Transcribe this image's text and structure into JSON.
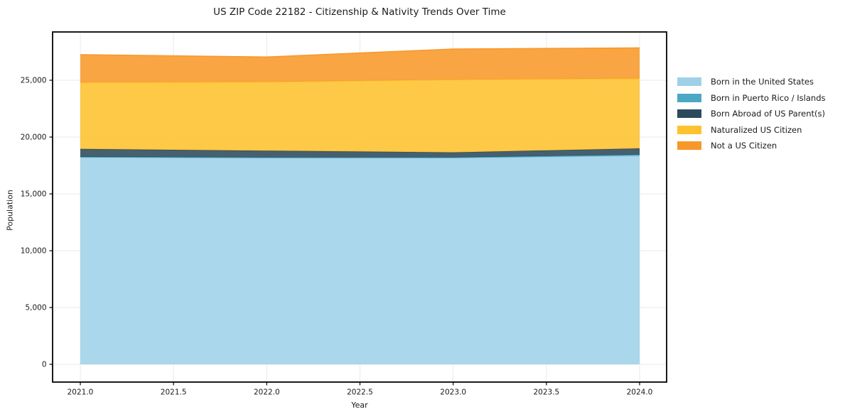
{
  "figure": {
    "title": "US ZIP Code 22182 - Citizenship & Nativity Trends Over Time"
  },
  "colors": {
    "grid": "#e9e9e9",
    "panel_border": "#000000",
    "text": "#1a1a1a",
    "background": "#ffffff"
  },
  "chart_data": {
    "type": "area",
    "stacked": true,
    "title": "US ZIP Code 22182 - Citizenship & Nativity Trends Over Time",
    "xlabel": "Year",
    "ylabel": "Population",
    "grid": true,
    "legend_position": "right",
    "x": [
      2021,
      2022,
      2023,
      2024
    ],
    "xlim": [
      2021,
      2024
    ],
    "ylim": [
      0,
      29000
    ],
    "x_tick_values": [
      2021.0,
      2021.5,
      2022.0,
      2022.5,
      2023.0,
      2023.5,
      2024.0
    ],
    "x_tick_labels": [
      "2021.0",
      "2021.5",
      "2022.0",
      "2022.5",
      "2023.0",
      "2023.5",
      "2024.0"
    ],
    "y_tick_values": [
      0,
      5000,
      10000,
      15000,
      20000,
      25000
    ],
    "y_tick_labels": [
      "0",
      "5,000",
      "10,000",
      "15,000",
      "20,000",
      "25,000"
    ],
    "series": [
      {
        "name": "Born in the United States",
        "color": "#9ed1e8",
        "values": [
          18200,
          18150,
          18150,
          18350
        ]
      },
      {
        "name": "Born in Puerto Rico / Islands",
        "color": "#4ba8c4",
        "values": [
          50,
          50,
          50,
          100
        ]
      },
      {
        "name": "Born Abroad of US Parent(s)",
        "color": "#2c4a5c",
        "values": [
          700,
          600,
          450,
          550
        ]
      },
      {
        "name": "Naturalized US Citizen",
        "color": "#fdc22d",
        "values": [
          5850,
          6050,
          6400,
          6150
        ]
      },
      {
        "name": "Not a US Citizen",
        "color": "#f8982a",
        "values": [
          2450,
          2200,
          2700,
          2700
        ]
      }
    ],
    "stacked_totals": [
      27250,
      27050,
      27750,
      27850
    ]
  }
}
